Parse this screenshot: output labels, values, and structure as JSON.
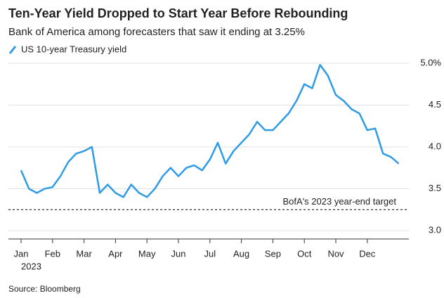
{
  "chart_data": {
    "type": "line",
    "title": "Ten-Year Yield Dropped to Start Year Before Rebounding",
    "subtitle": "Bank of America among forecasters that saw it ending at 3.25%",
    "year": "2023",
    "source": "Source: Bloomberg",
    "categories": [
      "Jan",
      null,
      null,
      null,
      "Feb",
      null,
      null,
      null,
      "Mar",
      null,
      null,
      null,
      "Apr",
      null,
      null,
      null,
      "May",
      null,
      null,
      null,
      "Jun",
      null,
      null,
      null,
      "Jul",
      null,
      null,
      null,
      "Aug",
      null,
      null,
      null,
      "Sep",
      null,
      null,
      null,
      "Oct",
      null,
      null,
      null,
      "Nov",
      null,
      null,
      null,
      "Dec",
      null,
      null,
      null,
      null
    ],
    "series": [
      {
        "name": "US 10-year Treasury yield",
        "color": "#2e9be6",
        "values": [
          3.72,
          3.5,
          3.45,
          3.5,
          3.52,
          3.65,
          3.82,
          3.92,
          3.95,
          4.0,
          3.45,
          3.55,
          3.45,
          3.4,
          3.55,
          3.45,
          3.4,
          3.5,
          3.65,
          3.75,
          3.65,
          3.75,
          3.78,
          3.72,
          3.85,
          4.05,
          3.8,
          3.95,
          4.05,
          4.15,
          4.3,
          4.2,
          4.2,
          4.3,
          4.4,
          4.55,
          4.75,
          4.7,
          4.98,
          4.85,
          4.62,
          4.55,
          4.45,
          4.4,
          4.2,
          4.22,
          3.92,
          3.88,
          3.8
        ]
      }
    ],
    "annotations": [
      {
        "value": 3.25,
        "label": "BofA's 2023 year-end target"
      }
    ],
    "ylim": [
      2.9,
      5.1
    ],
    "yticks": [
      {
        "value": 5.0,
        "label": "5.0%"
      },
      {
        "value": 4.5,
        "label": "4.5"
      },
      {
        "value": 4.0,
        "label": "4.0"
      },
      {
        "value": 3.5,
        "label": "3.5"
      },
      {
        "value": 3.0,
        "label": "3.0"
      }
    ],
    "grid": true
  }
}
